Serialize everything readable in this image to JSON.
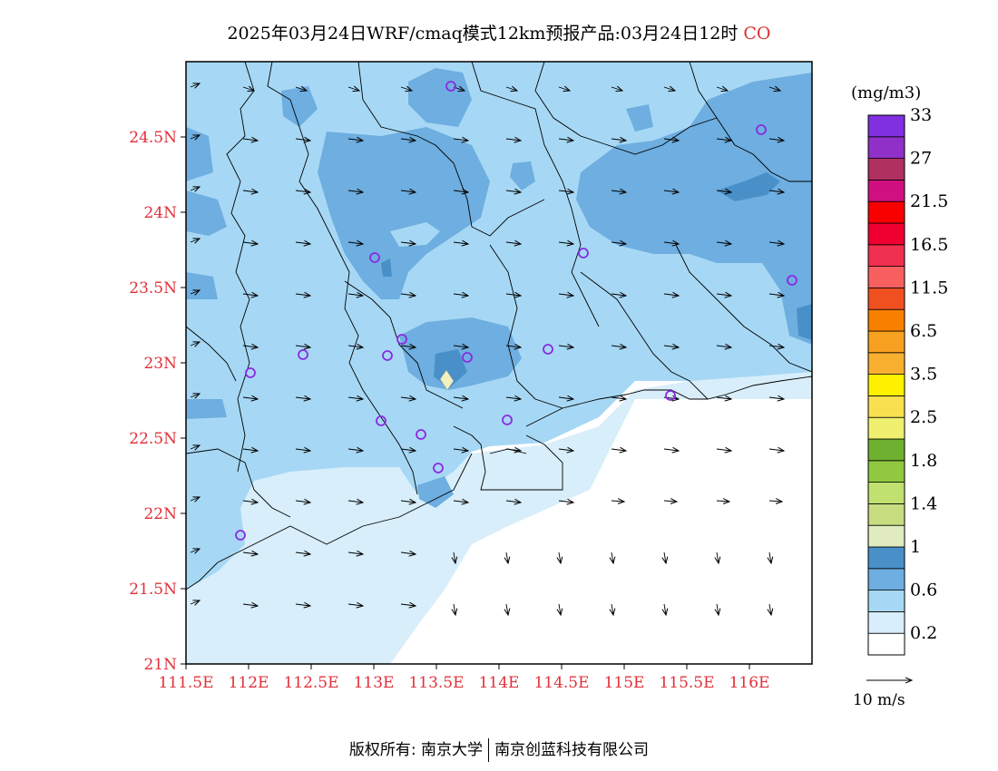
{
  "title": {
    "text": "2025年03月24日WRF/cmaq模式12km预报产品:03月24日12时",
    "pollutant": "CO"
  },
  "axes": {
    "lat_ticks": [
      "24.5N",
      "24N",
      "23.5N",
      "23N",
      "22.5N",
      "22N",
      "21.5N",
      "21N"
    ],
    "lon_ticks": [
      "111.5E",
      "112E",
      "112.5E",
      "113E",
      "113.5E",
      "114E",
      "114.5E",
      "115E",
      "115.5E",
      "116E"
    ],
    "lat_range": [
      21.0,
      25.0
    ],
    "lon_range": [
      111.5,
      116.5
    ]
  },
  "legend": {
    "unit": "(mg/m3)",
    "colors": [
      "#ffffff",
      "#d8eefa",
      "#a6d8f5",
      "#6eaee0",
      "#4a90c8",
      "#e0ecc0",
      "#c8dc80",
      "#c0e070",
      "#90c840",
      "#70b030",
      "#f0f070",
      "#f8e050",
      "#fff000",
      "#f8b030",
      "#f8a020",
      "#f88000",
      "#f05020",
      "#f86060",
      "#f03050",
      "#f00030",
      "#f80000",
      "#d01080",
      "#b03060",
      "#9030c8",
      "#8030e0"
    ],
    "labels": [
      "0.2",
      "0.6",
      "1",
      "1.4",
      "1.8",
      "2.5",
      "3.5",
      "6.5",
      "11.5",
      "16.5",
      "21.5",
      "27",
      "33"
    ]
  },
  "wind": {
    "reference": "10 m/s"
  },
  "stations_color": "#8a2be2",
  "footer": {
    "left": "版权所有: 南京大学",
    "right": "南京创蓝科技有限公司"
  }
}
